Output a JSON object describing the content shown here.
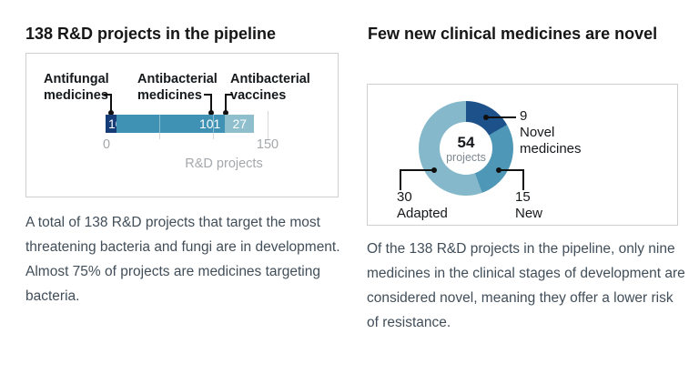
{
  "left_panel": {
    "title": "138 R&D projects in the pipeline",
    "chart": {
      "segments": [
        {
          "label": "Antifungal medicines",
          "value": 10,
          "color": "#163d78"
        },
        {
          "label": "Antibacterial medicines",
          "value": 101,
          "color": "#3f92b4"
        },
        {
          "label": "Antibacterial vaccines",
          "value": 27,
          "color": "#8fbecd"
        }
      ],
      "axis": {
        "ticks": [
          "0",
          "150"
        ],
        "label": "R&D projects"
      }
    },
    "caption": "A total of 138 R&D projects that target the most threatening bacteria and fungi are in development. Almost 75% of projects are medicines targeting bacteria."
  },
  "right_panel": {
    "title": "Few new clinical medicines are novel",
    "chart": {
      "center_value": "54",
      "center_label": "projects",
      "segments": [
        {
          "label": "Novel medicines",
          "value": 9,
          "color": "#1d5189"
        },
        {
          "label": "New",
          "value": 15,
          "color": "#4e97b6"
        },
        {
          "label": "Adapted",
          "value": 30,
          "color": "#85b8ca"
        }
      ]
    },
    "caption": "Of the 138 R&D projects in the pipeline, only nine medicines in the clinical stages of development are considered novel, meaning they offer a lower risk of resistance."
  },
  "chart_data": [
    {
      "type": "bar",
      "subtype": "horizontal-stacked",
      "title": "138 R&D projects in the pipeline",
      "categories": [
        "Antifungal medicines",
        "Antibacterial medicines",
        "Antibacterial vaccines"
      ],
      "values": [
        10,
        101,
        27
      ],
      "total": 138,
      "xlabel": "R&D projects",
      "xlim": [
        0,
        150
      ],
      "xticks": [
        0,
        150
      ],
      "gridlines": [
        50,
        100,
        150
      ],
      "colors": [
        "#163d78",
        "#3f92b4",
        "#8fbecd"
      ],
      "value_labels_inside_bar": true
    },
    {
      "type": "pie",
      "subtype": "donut",
      "title": "Few new clinical medicines are novel",
      "categories": [
        "Novel medicines",
        "New",
        "Adapted"
      ],
      "values": [
        9,
        15,
        30
      ],
      "total": 54,
      "center_text": "54 projects",
      "start_angle_deg": 0,
      "direction": "clockwise",
      "colors": [
        "#1d5189",
        "#4e97b6",
        "#85b8ca"
      ],
      "legend_position": "callout-annotations"
    }
  ]
}
